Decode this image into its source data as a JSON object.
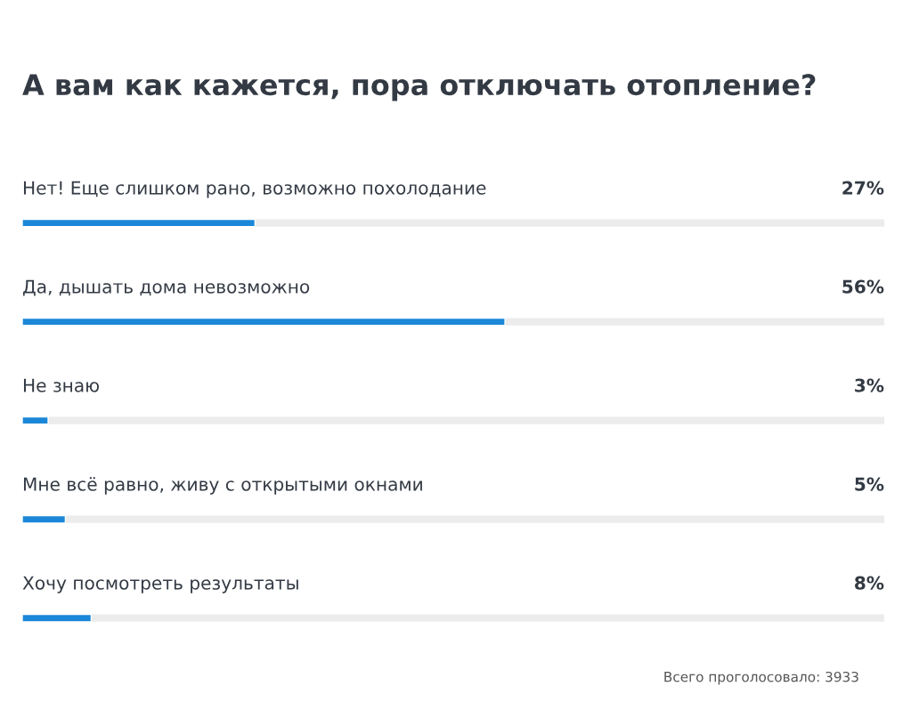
{
  "chart_data": {
    "type": "bar",
    "orientation": "horizontal",
    "title": "А вам как кажется, пора отключать отопление?",
    "categories": [
      "Нет! Еще слишком рано, возможно похолодание",
      "Да, дышать дома невозможно",
      "Не знаю",
      "Мне всё равно, живу с открытыми окнами",
      "Хочу посмотреть результаты"
    ],
    "values": [
      27,
      56,
      3,
      5,
      8
    ],
    "value_labels": [
      "27%",
      "56%",
      "3%",
      "5%",
      "8%"
    ],
    "color": "#1b87d8",
    "xlim": [
      0,
      100
    ],
    "legend": false,
    "annotations": [
      "Всего проголосовало: 3933"
    ]
  }
}
